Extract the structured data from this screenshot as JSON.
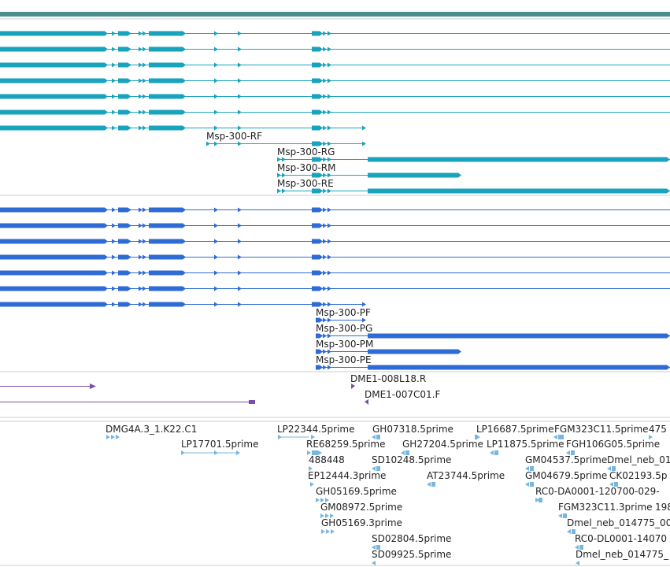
{
  "browser": "genome-browser-track-view",
  "colors": {
    "ruler": "#4a8f8b",
    "transcript": "#1aa3bd",
    "protein": "#2f6bd4",
    "repeat": "#7b4fa8",
    "est": "#78b6de",
    "separator": "#cccccc"
  },
  "transcripts": {
    "labels": [
      "Msp-300-RF",
      "Msp-300-RG",
      "Msp-300-RM",
      "Msp-300-RE"
    ]
  },
  "proteins": {
    "labels": [
      "Msp-300-PF",
      "Msp-300-PG",
      "Msp-300-PM",
      "Msp-300-PE"
    ]
  },
  "clones": {
    "labels": [
      "DME1-008L18.R",
      "DME1-007C01.F"
    ]
  },
  "ests": {
    "labels": [
      "DMG4A.3_1.K22.C1",
      "LP17701.5prime",
      "LP22344.5prime",
      "RE68259.5prime",
      "488448",
      "EP12444.3prime",
      "GH05169.5prime",
      "GM08972.5prime",
      "GH05169.3prime",
      "GH07318.5prime",
      "SD10248.5prime",
      "GH27204.5prime",
      "AT23744.5prime",
      "SD02804.5prime",
      "SD09925.5prime",
      "LP16687.5prime",
      "LP11875.5prime",
      "GM04537.5prime",
      "GM04679.5prime",
      "RC0-DA0001-120700-029-",
      "FGM323C11.5prime",
      "FGH106G05.5prime",
      "Dmel_neb_01",
      "CK02193.5p",
      "FGM323C11.3prime",
      "198",
      "Dmel_neb_014775_00",
      "RC0-DL0001-14070",
      "Dmel_neb_014775_",
      "475"
    ]
  }
}
